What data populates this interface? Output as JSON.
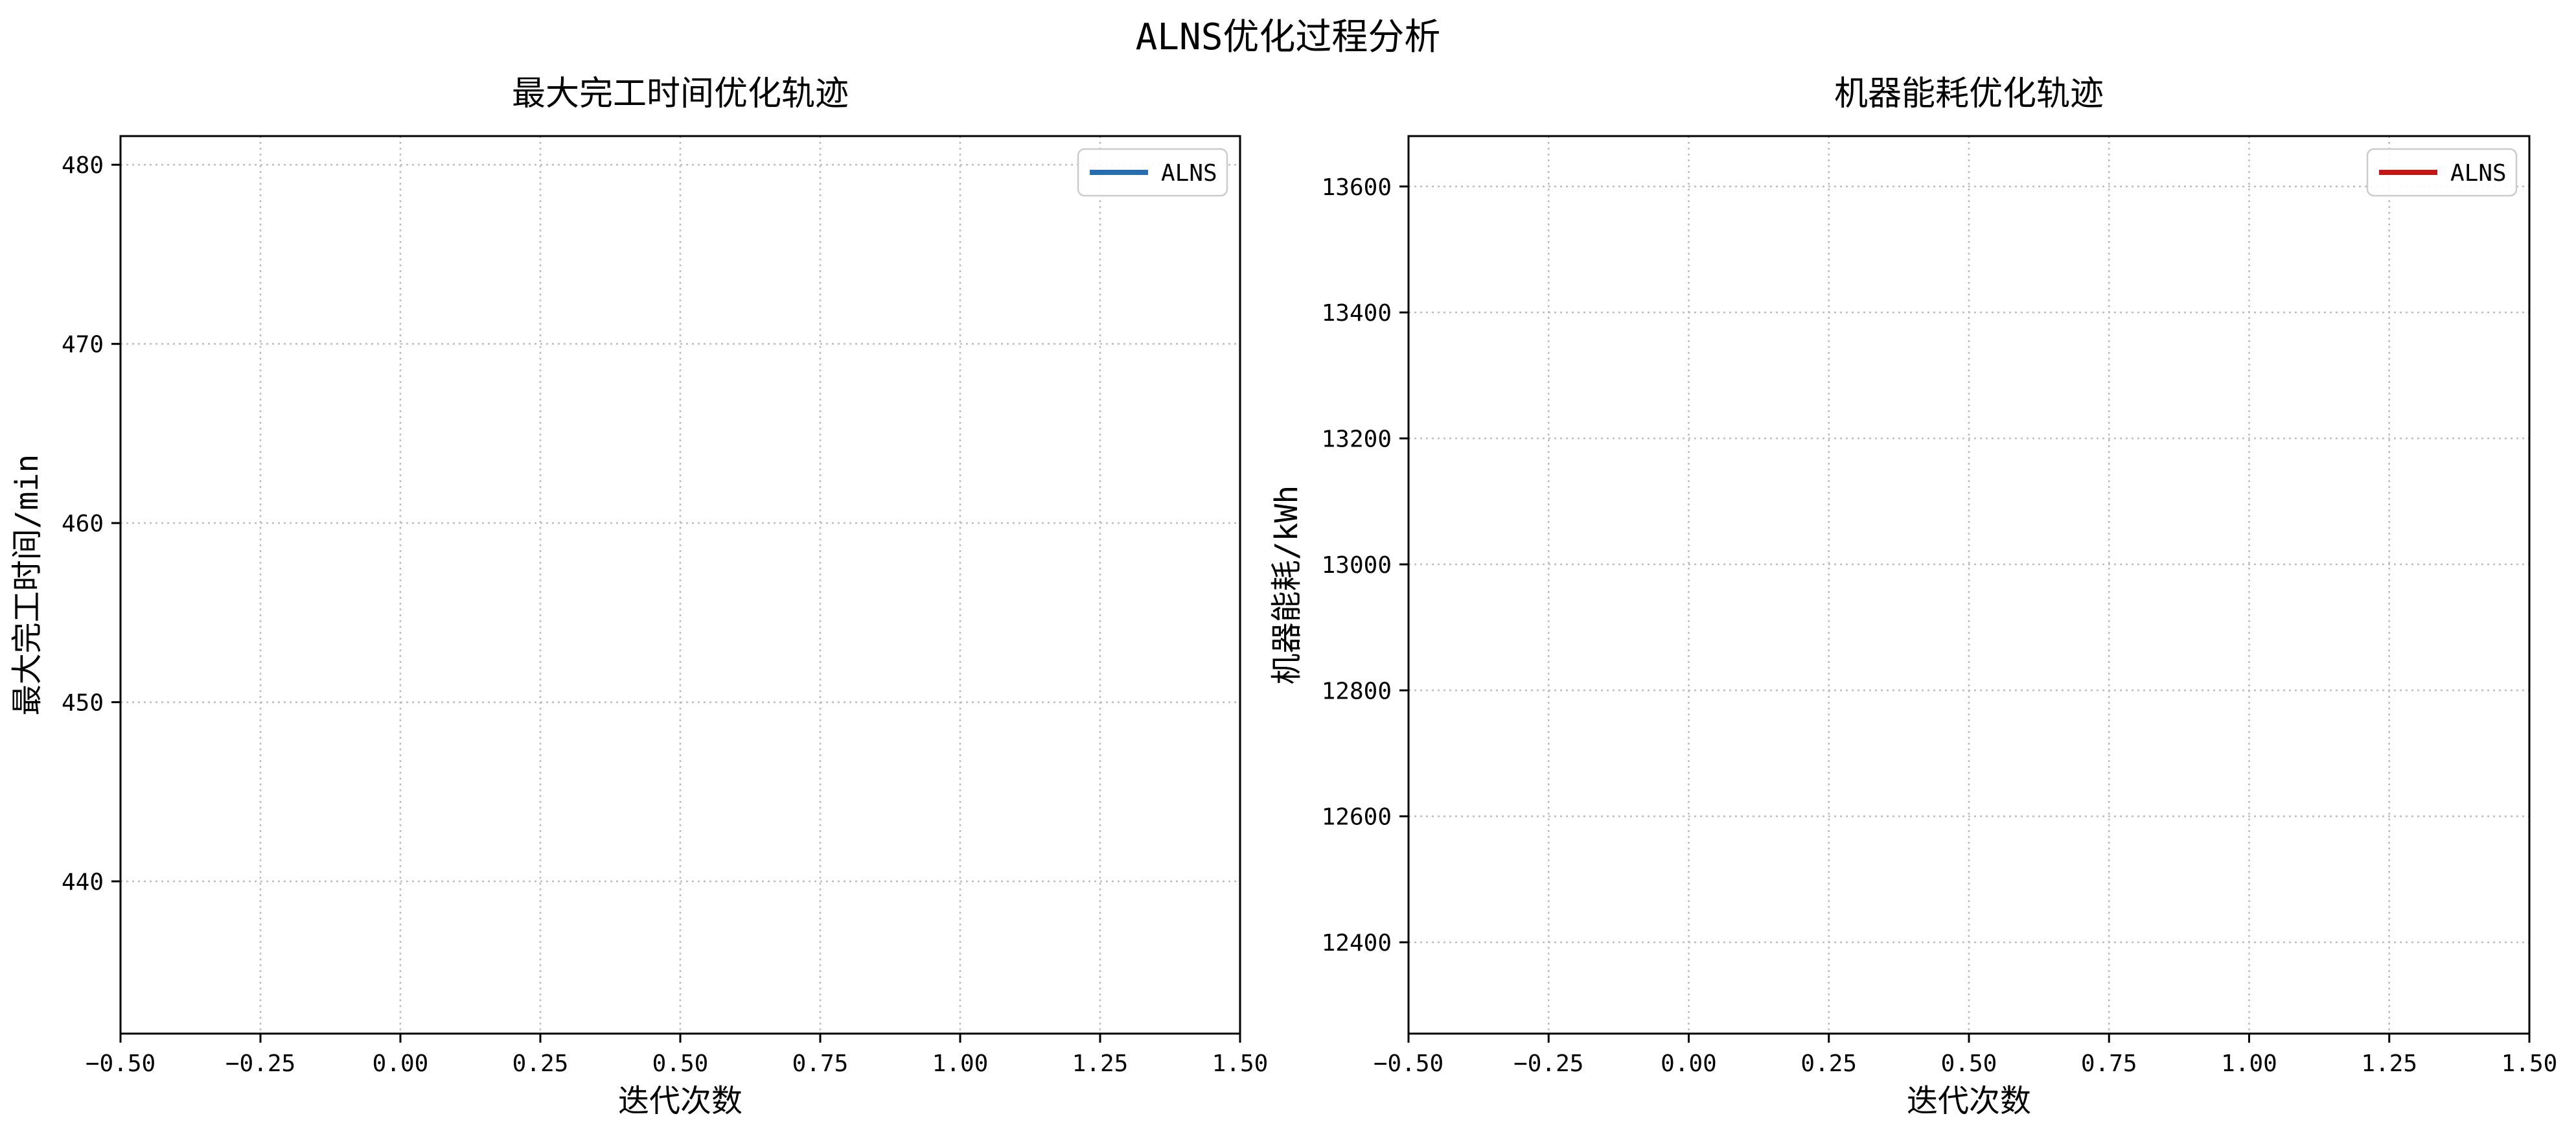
{
  "figure": {
    "suptitle": "ALNS优化过程分析"
  },
  "chart_data": [
    {
      "type": "line",
      "title": "最大完工时间优化轨迹",
      "xlabel": "迭代次数",
      "ylabel": "最大完工时间/min",
      "xlim": [
        -0.5,
        1.5
      ],
      "ylim": [
        431.5,
        481.6
      ],
      "xticks": [
        -0.5,
        -0.25,
        0.0,
        0.25,
        0.5,
        0.75,
        1.0,
        1.25,
        1.5
      ],
      "xtick_labels": [
        "−0.50",
        "−0.25",
        "0.00",
        "0.25",
        "0.50",
        "0.75",
        "1.00",
        "1.25",
        "1.50"
      ],
      "yticks": [
        440,
        450,
        460,
        470,
        480
      ],
      "ytick_labels": [
        "440",
        "450",
        "460",
        "470",
        "480"
      ],
      "grid": true,
      "legend_position": "top-right",
      "series": [
        {
          "name": "ALNS",
          "color": "#2b6cb0",
          "x": [],
          "y": []
        }
      ]
    },
    {
      "type": "line",
      "title": "机器能耗优化轨迹",
      "xlabel": "迭代次数",
      "ylabel": "机器能耗/kWh",
      "xlim": [
        -0.5,
        1.5
      ],
      "ylim": [
        12255,
        13680
      ],
      "xticks": [
        -0.5,
        -0.25,
        0.0,
        0.25,
        0.5,
        0.75,
        1.0,
        1.25,
        1.5
      ],
      "xtick_labels": [
        "−0.50",
        "−0.25",
        "0.00",
        "0.25",
        "0.50",
        "0.75",
        "1.00",
        "1.25",
        "1.50"
      ],
      "yticks": [
        12400,
        12600,
        12800,
        13000,
        13200,
        13400,
        13600
      ],
      "ytick_labels": [
        "12400",
        "12600",
        "12800",
        "13000",
        "13200",
        "13400",
        "13600"
      ],
      "grid": true,
      "legend_position": "top-right",
      "series": [
        {
          "name": "ALNS",
          "color": "#c01818",
          "x": [],
          "y": []
        }
      ]
    }
  ]
}
